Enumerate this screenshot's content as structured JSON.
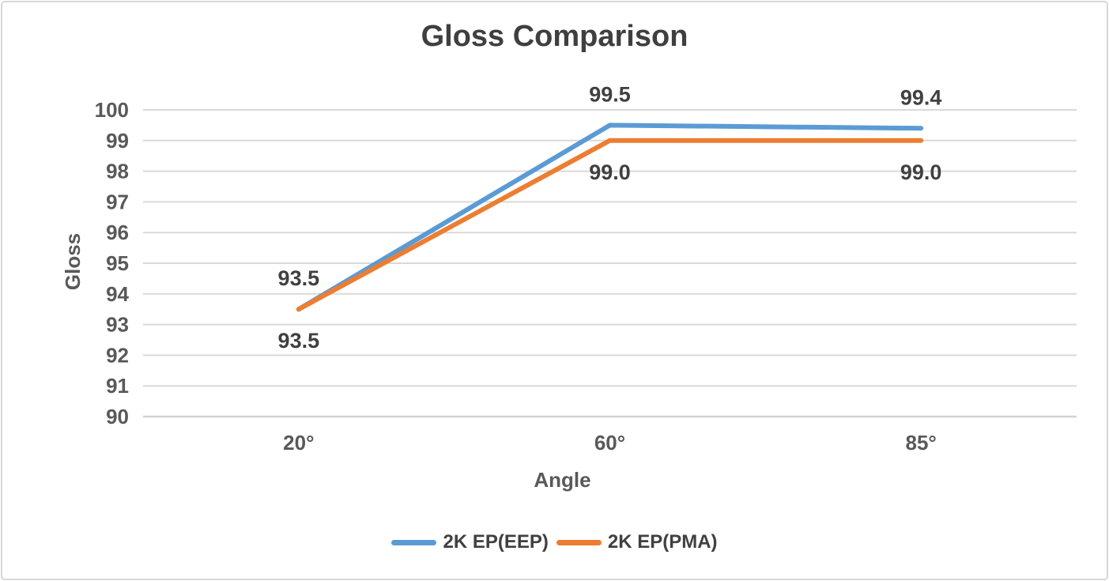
{
  "chart_data": {
    "type": "line",
    "title": "Gloss Comparison",
    "xlabel": "Angle",
    "ylabel": "Gloss",
    "categories": [
      "20°",
      "60°",
      "85°"
    ],
    "series": [
      {
        "name": "2K EP(EEP)",
        "color": "#5B9BD5",
        "values": [
          93.5,
          99.5,
          99.4
        ],
        "labels": [
          "93.5",
          "99.5",
          "99.4"
        ],
        "label_position": "above"
      },
      {
        "name": "2K EP(PMA)",
        "color": "#ED7D31",
        "values": [
          93.5,
          99.0,
          99.0
        ],
        "labels": [
          "93.5",
          "99.0",
          "99.0"
        ],
        "label_position": "below"
      }
    ],
    "ylim": [
      90,
      100
    ],
    "ytick_step": 1,
    "ytick_labels": [
      "90",
      "91",
      "92",
      "93",
      "94",
      "95",
      "96",
      "97",
      "98",
      "99",
      "100"
    ],
    "grid": "horizontal",
    "legend_position": "bottom"
  },
  "styles": {
    "grid_color": "#d9d9d9",
    "axis_line_color": "#d2d2d2",
    "tick_text_color": "#595959",
    "label_text_color": "#404040",
    "title_color": "#3f3f3f",
    "frame_border_color": "#d7d7d7",
    "background": "#ffffff"
  }
}
